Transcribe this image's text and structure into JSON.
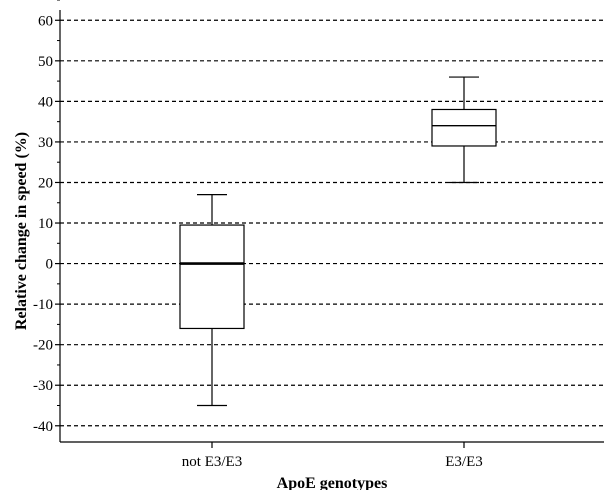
{
  "chart_data": {
    "type": "box",
    "xlabel": "ApoE genotypes",
    "ylabel": "Relative change in speed (%)",
    "ylim": [
      -44,
      65
    ],
    "yticks": [
      -40,
      -30,
      -20,
      -10,
      0,
      10,
      20,
      30,
      40,
      50,
      60
    ],
    "ytick_labels": [
      "-40",
      "-30",
      "-20",
      "-10",
      "0",
      "10",
      "20",
      "30",
      "40",
      "50",
      "60"
    ],
    "minor_tick_step": 5,
    "grid": "horizontal-dashed",
    "categories": [
      "not E3/E3",
      "E3/E3"
    ],
    "boxes": [
      {
        "category": "not E3/E3",
        "min": -35,
        "q1": -16,
        "median": 0,
        "q3": 9.5,
        "max": 17
      },
      {
        "category": "E3/E3",
        "min": 20,
        "q1": 29,
        "median": 34,
        "q3": 38,
        "max": 46
      }
    ],
    "colors": {
      "box_fill": "#ffffff",
      "stroke": "#000000",
      "grid": "#000000"
    }
  }
}
